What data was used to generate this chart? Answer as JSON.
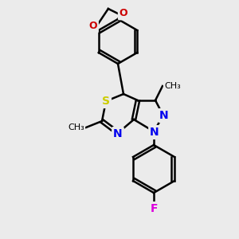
{
  "background_color": "#ebebeb",
  "bg_rgb": [
    0.922,
    0.922,
    0.922
  ],
  "bond_color": "#000000",
  "bond_width": 1.8,
  "atom_colors": {
    "N": "#0000ee",
    "O": "#cc0000",
    "S": "#cccc00",
    "F": "#dd00dd",
    "C": "#000000"
  },
  "font_size": 9,
  "label_font_size": 9
}
